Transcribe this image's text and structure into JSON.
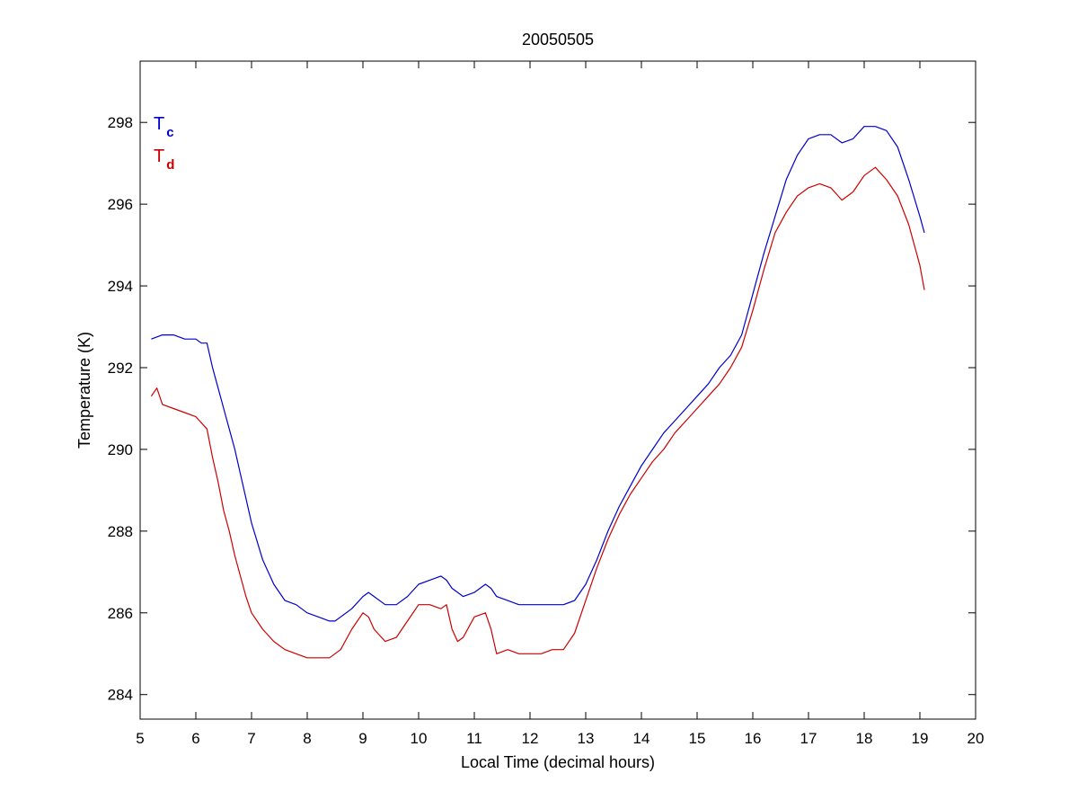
{
  "chart_data": {
    "type": "line",
    "title": "20050505",
    "xlabel": "Local Time (decimal hours)",
    "ylabel": "Temperature (K)",
    "xlim": [
      5,
      20
    ],
    "ylim": [
      283.4,
      299.5
    ],
    "xticks": [
      5,
      6,
      7,
      8,
      9,
      10,
      11,
      12,
      13,
      14,
      15,
      16,
      17,
      18,
      19,
      20
    ],
    "yticks": [
      284,
      286,
      288,
      290,
      292,
      294,
      296,
      298
    ],
    "grid": false,
    "legend": {
      "position": "top-left",
      "entries": [
        {
          "base": "T",
          "sub": "c",
          "color": "#0000CC"
        },
        {
          "base": "T",
          "sub": "d",
          "color": "#CC0000"
        }
      ]
    },
    "series": [
      {
        "color": "#0000CC",
        "x": [
          5.2,
          5.4,
          5.6,
          5.8,
          6.0,
          6.1,
          6.2,
          6.3,
          6.4,
          6.5,
          6.6,
          6.7,
          6.8,
          6.9,
          7.0,
          7.2,
          7.4,
          7.6,
          7.8,
          8.0,
          8.2,
          8.4,
          8.5,
          8.6,
          8.8,
          9.0,
          9.1,
          9.2,
          9.4,
          9.6,
          9.8,
          10.0,
          10.2,
          10.4,
          10.5,
          10.6,
          10.8,
          11.0,
          11.2,
          11.3,
          11.4,
          11.6,
          11.8,
          12.0,
          12.2,
          12.4,
          12.6,
          12.8,
          13.0,
          13.2,
          13.4,
          13.6,
          13.8,
          14.0,
          14.2,
          14.4,
          14.6,
          14.8,
          15.0,
          15.2,
          15.4,
          15.6,
          15.8,
          16.0,
          16.2,
          16.4,
          16.6,
          16.8,
          17.0,
          17.2,
          17.4,
          17.6,
          17.8,
          18.0,
          18.2,
          18.4,
          18.6,
          18.8,
          19.0,
          19.08
        ],
        "y": [
          292.7,
          292.8,
          292.8,
          292.7,
          292.7,
          292.6,
          292.6,
          292.0,
          291.5,
          291.0,
          290.5,
          290.0,
          289.4,
          288.8,
          288.2,
          287.3,
          286.7,
          286.3,
          286.2,
          286.0,
          285.9,
          285.8,
          285.8,
          285.9,
          286.1,
          286.4,
          286.5,
          286.4,
          286.2,
          286.2,
          286.4,
          286.7,
          286.8,
          286.9,
          286.8,
          286.6,
          286.4,
          286.5,
          286.7,
          286.6,
          286.4,
          286.3,
          286.2,
          286.2,
          286.2,
          286.2,
          286.2,
          286.3,
          286.7,
          287.3,
          288.0,
          288.6,
          289.1,
          289.6,
          290.0,
          290.4,
          290.7,
          291.0,
          291.3,
          291.6,
          292.0,
          292.3,
          292.8,
          293.8,
          294.8,
          295.7,
          296.6,
          297.2,
          297.6,
          297.7,
          297.7,
          297.5,
          297.6,
          297.9,
          297.9,
          297.8,
          297.4,
          296.6,
          295.7,
          295.3
        ]
      },
      {
        "color": "#CC0000",
        "x": [
          5.2,
          5.3,
          5.4,
          5.6,
          5.8,
          6.0,
          6.2,
          6.3,
          6.4,
          6.5,
          6.6,
          6.7,
          6.8,
          6.9,
          7.0,
          7.2,
          7.4,
          7.6,
          7.8,
          8.0,
          8.2,
          8.4,
          8.6,
          8.8,
          9.0,
          9.1,
          9.2,
          9.4,
          9.6,
          9.8,
          10.0,
          10.2,
          10.4,
          10.5,
          10.6,
          10.7,
          10.8,
          11.0,
          11.2,
          11.3,
          11.4,
          11.6,
          11.8,
          12.0,
          12.2,
          12.4,
          12.6,
          12.8,
          13.0,
          13.2,
          13.4,
          13.6,
          13.8,
          14.0,
          14.2,
          14.4,
          14.6,
          14.8,
          15.0,
          15.2,
          15.4,
          15.6,
          15.8,
          16.0,
          16.2,
          16.4,
          16.6,
          16.8,
          17.0,
          17.2,
          17.4,
          17.6,
          17.8,
          18.0,
          18.2,
          18.4,
          18.6,
          18.8,
          19.0,
          19.08
        ],
        "y": [
          291.3,
          291.5,
          291.1,
          291.0,
          290.9,
          290.8,
          290.5,
          289.8,
          289.2,
          288.5,
          288.0,
          287.4,
          286.9,
          286.4,
          286.0,
          285.6,
          285.3,
          285.1,
          285.0,
          284.9,
          284.9,
          284.9,
          285.1,
          285.6,
          286.0,
          285.9,
          285.6,
          285.3,
          285.4,
          285.8,
          286.2,
          286.2,
          286.1,
          286.2,
          285.6,
          285.3,
          285.4,
          285.9,
          286.0,
          285.6,
          285.0,
          285.1,
          285.0,
          285.0,
          285.0,
          285.1,
          285.1,
          285.5,
          286.3,
          287.1,
          287.8,
          288.4,
          288.9,
          289.3,
          289.7,
          290.0,
          290.4,
          290.7,
          291.0,
          291.3,
          291.6,
          292.0,
          292.5,
          293.4,
          294.4,
          295.3,
          295.8,
          296.2,
          296.4,
          296.5,
          296.4,
          296.1,
          296.3,
          296.7,
          296.9,
          296.6,
          296.2,
          295.5,
          294.5,
          293.9
        ]
      }
    ]
  }
}
